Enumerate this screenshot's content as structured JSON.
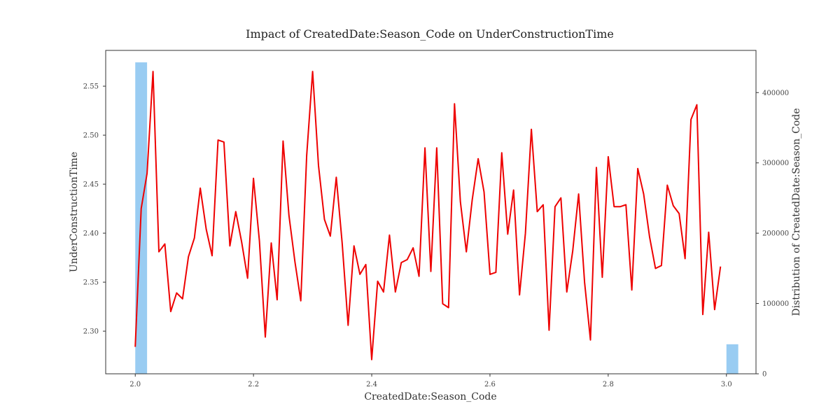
{
  "chart_data": {
    "type": "line",
    "title": "Impact of CreatedDate:Season_Code on UnderConstructionTime",
    "xlabel": "CreatedDate:Season_Code",
    "ylabel": "UnderConstructionTime",
    "y2label": "Distribution of CreatedDate:Season_Code",
    "xlim": [
      1.95,
      3.05
    ],
    "ylim": [
      2.2565,
      2.5865
    ],
    "y2lim": [
      0,
      460000
    ],
    "xticks": [
      "2.0",
      "2.2",
      "2.4",
      "2.6",
      "2.8",
      "3.0"
    ],
    "yticks": [
      "2.30",
      "2.35",
      "2.40",
      "2.45",
      "2.50",
      "2.55"
    ],
    "y2ticks": [
      "0",
      "100000",
      "200000",
      "300000",
      "400000"
    ],
    "grid": false,
    "series": [
      {
        "type": "line",
        "color": "#ee0000",
        "x": [
          2.0,
          2.01,
          2.02,
          2.03,
          2.04,
          2.05,
          2.06,
          2.07,
          2.08,
          2.09,
          2.1,
          2.11,
          2.12,
          2.13,
          2.14,
          2.15,
          2.16,
          2.17,
          2.18,
          2.19,
          2.2,
          2.21,
          2.22,
          2.23,
          2.24,
          2.25,
          2.26,
          2.27,
          2.28,
          2.29,
          2.3,
          2.31,
          2.32,
          2.33,
          2.34,
          2.35,
          2.36,
          2.37,
          2.38,
          2.39,
          2.4,
          2.41,
          2.42,
          2.43,
          2.44,
          2.45,
          2.46,
          2.47,
          2.48,
          2.49,
          2.5,
          2.51,
          2.52,
          2.53,
          2.54,
          2.55,
          2.56,
          2.57,
          2.58,
          2.59,
          2.6,
          2.61,
          2.62,
          2.63,
          2.64,
          2.65,
          2.66,
          2.67,
          2.68,
          2.69,
          2.7,
          2.71,
          2.72,
          2.73,
          2.74,
          2.75,
          2.76,
          2.77,
          2.78,
          2.79,
          2.8,
          2.81,
          2.82,
          2.83,
          2.84,
          2.85,
          2.86,
          2.87,
          2.88,
          2.89,
          2.9,
          2.91,
          2.92,
          2.93,
          2.94,
          2.95,
          2.96,
          2.97,
          2.98,
          2.99
        ],
        "values": [
          2.284,
          2.425,
          2.461,
          2.565,
          2.381,
          2.389,
          2.32,
          2.339,
          2.333,
          2.376,
          2.395,
          2.446,
          2.404,
          2.377,
          2.495,
          2.493,
          2.387,
          2.422,
          2.391,
          2.354,
          2.456,
          2.392,
          2.294,
          2.39,
          2.332,
          2.494,
          2.418,
          2.371,
          2.331,
          2.479,
          2.565,
          2.469,
          2.414,
          2.397,
          2.457,
          2.39,
          2.306,
          2.387,
          2.358,
          2.368,
          2.271,
          2.351,
          2.34,
          2.398,
          2.34,
          2.37,
          2.373,
          2.385,
          2.356,
          2.487,
          2.361,
          2.487,
          2.328,
          2.324,
          2.532,
          2.432,
          2.381,
          2.434,
          2.476,
          2.442,
          2.358,
          2.36,
          2.482,
          2.399,
          2.444,
          2.337,
          2.4,
          2.506,
          2.422,
          2.429,
          2.301,
          2.427,
          2.436,
          2.34,
          2.382,
          2.44,
          2.35,
          2.291,
          2.467,
          2.355,
          2.478,
          2.427,
          2.427,
          2.429,
          2.342,
          2.466,
          2.44,
          2.396,
          2.364,
          2.367,
          2.449,
          2.428,
          2.42,
          2.374,
          2.516,
          2.531,
          2.317,
          2.401,
          2.322,
          2.366
        ]
      },
      {
        "type": "bar",
        "axis": "right",
        "color": "#99ccf2",
        "x": [
          2.0,
          3.0
        ],
        "values": [
          443000,
          42000
        ],
        "bar_width": 0.02
      }
    ]
  }
}
